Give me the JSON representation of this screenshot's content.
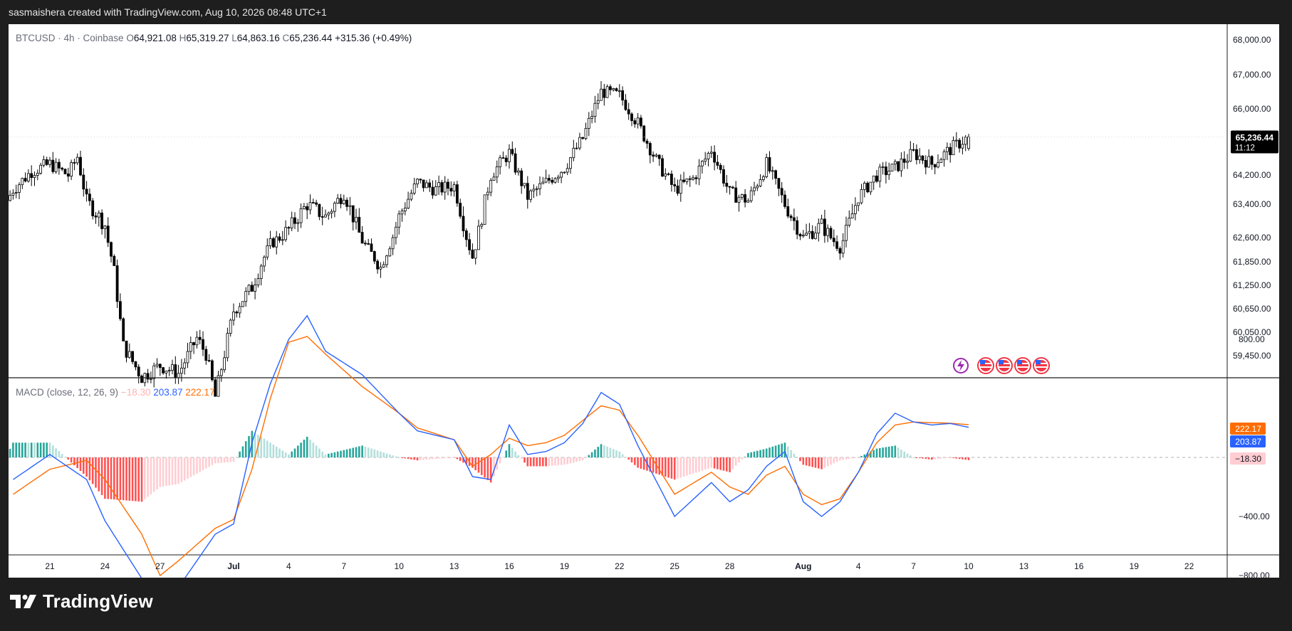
{
  "header": {
    "attribution": "sasmaishera created with TradingView.com, Aug 10, 2026 08:48 UTC+1"
  },
  "footer": {
    "brand": "TradingView"
  },
  "colors": {
    "up": "#ffffff",
    "down": "#000000",
    "macd_line": "#2962ff",
    "signal_line": "#ff6d00",
    "hist_up_strong": "#26a69a",
    "hist_up_weak": "#b2dfdb",
    "hist_down_strong": "#ff5252",
    "hist_down_weak": "#ffcdd2"
  },
  "chart_data": [
    {
      "type": "candlestick",
      "symbol": "BTCUSD",
      "interval": "4h",
      "exchange": "Coinbase",
      "ohlc_legend": {
        "o_label": "O",
        "o": "64,921.08",
        "h_label": "H",
        "h": "65,319.27",
        "l_label": "L",
        "l": "64,863.16",
        "c_label": "C",
        "c": "65,236.44",
        "change": "+315.36 (+0.49%)"
      },
      "price_label": "65,236.44",
      "countdown": "11:12",
      "y_ticks": [
        "68,000.00",
        "67,000.00",
        "66,000.00",
        "64,200.00",
        "63,400.00",
        "62,600.00",
        "61,850.00",
        "61,250.00",
        "60,650.00",
        "60,050.00",
        "59,450.00"
      ],
      "x_ticks": [
        "21",
        "24",
        "27",
        "Jul",
        "4",
        "7",
        "10",
        "13",
        "16",
        "19",
        "22",
        "25",
        "28",
        "Aug",
        "4",
        "7",
        "10",
        "13",
        "16",
        "19",
        "22"
      ],
      "trend_close": [
        [
          "Jun 18",
          62900
        ],
        [
          "Jun 19",
          63800
        ],
        [
          "Jun 20",
          64300
        ],
        [
          "Jun 21",
          64500
        ],
        [
          "Jun 22",
          64200
        ],
        [
          "Jun 22",
          64700
        ],
        [
          "Jun 23",
          63500
        ],
        [
          "Jun 24",
          62900
        ],
        [
          "Jun 24",
          61600
        ],
        [
          "Jun 25",
          59700
        ],
        [
          "Jun 26",
          58900
        ],
        [
          "Jun 27",
          59200
        ],
        [
          "Jun 28",
          59000
        ],
        [
          "Jun 29",
          59900
        ],
        [
          "Jun 29",
          59500
        ],
        [
          "Jun 30",
          58400
        ],
        [
          "Jul 1",
          60600
        ],
        [
          "Jul 2",
          61200
        ],
        [
          "Jul 3",
          62400
        ],
        [
          "Jul 4",
          62800
        ],
        [
          "Jul 5",
          63400
        ],
        [
          "Jul 6",
          63100
        ],
        [
          "Jul 7",
          63700
        ],
        [
          "Jul 8",
          62500
        ],
        [
          "Jul 9",
          61700
        ],
        [
          "Jul 10",
          63100
        ],
        [
          "Jul 11",
          64000
        ],
        [
          "Jul 12",
          63800
        ],
        [
          "Jul 13",
          63900
        ],
        [
          "Jul 14",
          62000
        ],
        [
          "Jul 15",
          64200
        ],
        [
          "Jul 16",
          64800
        ],
        [
          "Jul 17",
          63600
        ],
        [
          "Jul 18",
          64000
        ],
        [
          "Jul 19",
          64400
        ],
        [
          "Jul 20",
          65200
        ],
        [
          "Jul 21",
          66500
        ],
        [
          "Jul 22",
          66400
        ],
        [
          "Jul 23",
          65600
        ],
        [
          "Jul 24",
          64600
        ],
        [
          "Jul 25",
          63800
        ],
        [
          "Jul 26",
          64100
        ],
        [
          "Jul 27",
          64900
        ],
        [
          "Jul 28",
          63700
        ],
        [
          "Jul 29",
          63500
        ],
        [
          "Jul 30",
          64500
        ],
        [
          "Jul 31",
          63400
        ],
        [
          "Aug 1",
          62600
        ],
        [
          "Aug 2",
          62900
        ],
        [
          "Aug 3",
          62300
        ],
        [
          "Aug 4",
          63600
        ],
        [
          "Aug 5",
          64200
        ],
        [
          "Aug 6",
          64400
        ],
        [
          "Aug 7",
          64800
        ],
        [
          "Aug 8",
          64500
        ],
        [
          "Aug 9",
          64900
        ],
        [
          "Aug 10",
          65236.44
        ]
      ]
    },
    {
      "type": "macd",
      "indicator_label": "MACD (close, 12, 26, 9)",
      "histogram_value": "−18.30",
      "macd_value": "203.87",
      "signal_value": "222.17",
      "y_ticks": [
        "800.00",
        "−400.00",
        "−800.00"
      ],
      "macd_points": [
        [
          "Jun 18",
          -350
        ],
        [
          "Jun 19",
          -150
        ],
        [
          "Jun 21",
          20
        ],
        [
          "Jun 23",
          -150
        ],
        [
          "Jun 24",
          -430
        ],
        [
          "Jun 26",
          -820
        ],
        [
          "Jun 27",
          -1000
        ],
        [
          "Jun 28",
          -880
        ],
        [
          "Jun 30",
          -520
        ],
        [
          "Jul 1",
          -450
        ],
        [
          "Jul 2",
          100
        ],
        [
          "Jul 3",
          500
        ],
        [
          "Jul 4",
          800
        ],
        [
          "Jul 5",
          960
        ],
        [
          "Jul 6",
          720
        ],
        [
          "Jul 8",
          560
        ],
        [
          "Jul 10",
          300
        ],
        [
          "Jul 11",
          180
        ],
        [
          "Jul 13",
          120
        ],
        [
          "Jul 14",
          -130
        ],
        [
          "Jul 15",
          -150
        ],
        [
          "Jul 16",
          220
        ],
        [
          "Jul 17",
          20
        ],
        [
          "Jul 18",
          40
        ],
        [
          "Jul 19",
          100
        ],
        [
          "Jul 20",
          230
        ],
        [
          "Jul 21",
          440
        ],
        [
          "Jul 22",
          360
        ],
        [
          "Jul 23",
          80
        ],
        [
          "Jul 25",
          -400
        ],
        [
          "Jul 27",
          -170
        ],
        [
          "Jul 28",
          -300
        ],
        [
          "Jul 29",
          -220
        ],
        [
          "Jul 30",
          -60
        ],
        [
          "Jul 31",
          40
        ],
        [
          "Aug 1",
          -300
        ],
        [
          "Aug 2",
          -400
        ],
        [
          "Aug 3",
          -300
        ],
        [
          "Aug 4",
          -100
        ],
        [
          "Aug 5",
          160
        ],
        [
          "Aug 6",
          300
        ],
        [
          "Aug 7",
          240
        ],
        [
          "Aug 8",
          220
        ],
        [
          "Aug 9",
          230
        ],
        [
          "Aug 10",
          203.87
        ]
      ],
      "signal_points": [
        [
          "Jun 18",
          -200
        ],
        [
          "Jun 19",
          -250
        ],
        [
          "Jun 21",
          -80
        ],
        [
          "Jun 23",
          -20
        ],
        [
          "Jun 24",
          -150
        ],
        [
          "Jun 26",
          -520
        ],
        [
          "Jun 27",
          -800
        ],
        [
          "Jun 28",
          -700
        ],
        [
          "Jun 30",
          -480
        ],
        [
          "Jul 1",
          -420
        ],
        [
          "Jul 2",
          -80
        ],
        [
          "Jul 3",
          400
        ],
        [
          "Jul 4",
          780
        ],
        [
          "Jul 5",
          820
        ],
        [
          "Jul 6",
          700
        ],
        [
          "Jul 8",
          480
        ],
        [
          "Jul 10",
          300
        ],
        [
          "Jul 11",
          200
        ],
        [
          "Jul 13",
          120
        ],
        [
          "Jul 14",
          -60
        ],
        [
          "Jul 15",
          20
        ],
        [
          "Jul 16",
          130
        ],
        [
          "Jul 17",
          80
        ],
        [
          "Jul 18",
          100
        ],
        [
          "Jul 19",
          150
        ],
        [
          "Jul 20",
          250
        ],
        [
          "Jul 21",
          350
        ],
        [
          "Jul 22",
          320
        ],
        [
          "Jul 23",
          150
        ],
        [
          "Jul 25",
          -250
        ],
        [
          "Jul 27",
          -100
        ],
        [
          "Jul 28",
          -200
        ],
        [
          "Jul 29",
          -250
        ],
        [
          "Jul 30",
          -120
        ],
        [
          "Jul 31",
          -60
        ],
        [
          "Aug 1",
          -250
        ],
        [
          "Aug 2",
          -320
        ],
        [
          "Aug 3",
          -280
        ],
        [
          "Aug 4",
          -100
        ],
        [
          "Aug 5",
          100
        ],
        [
          "Aug 6",
          220
        ],
        [
          "Aug 7",
          240
        ],
        [
          "Aug 8",
          235
        ],
        [
          "Aug 9",
          232
        ],
        [
          "Aug 10",
          222.17
        ]
      ]
    }
  ]
}
